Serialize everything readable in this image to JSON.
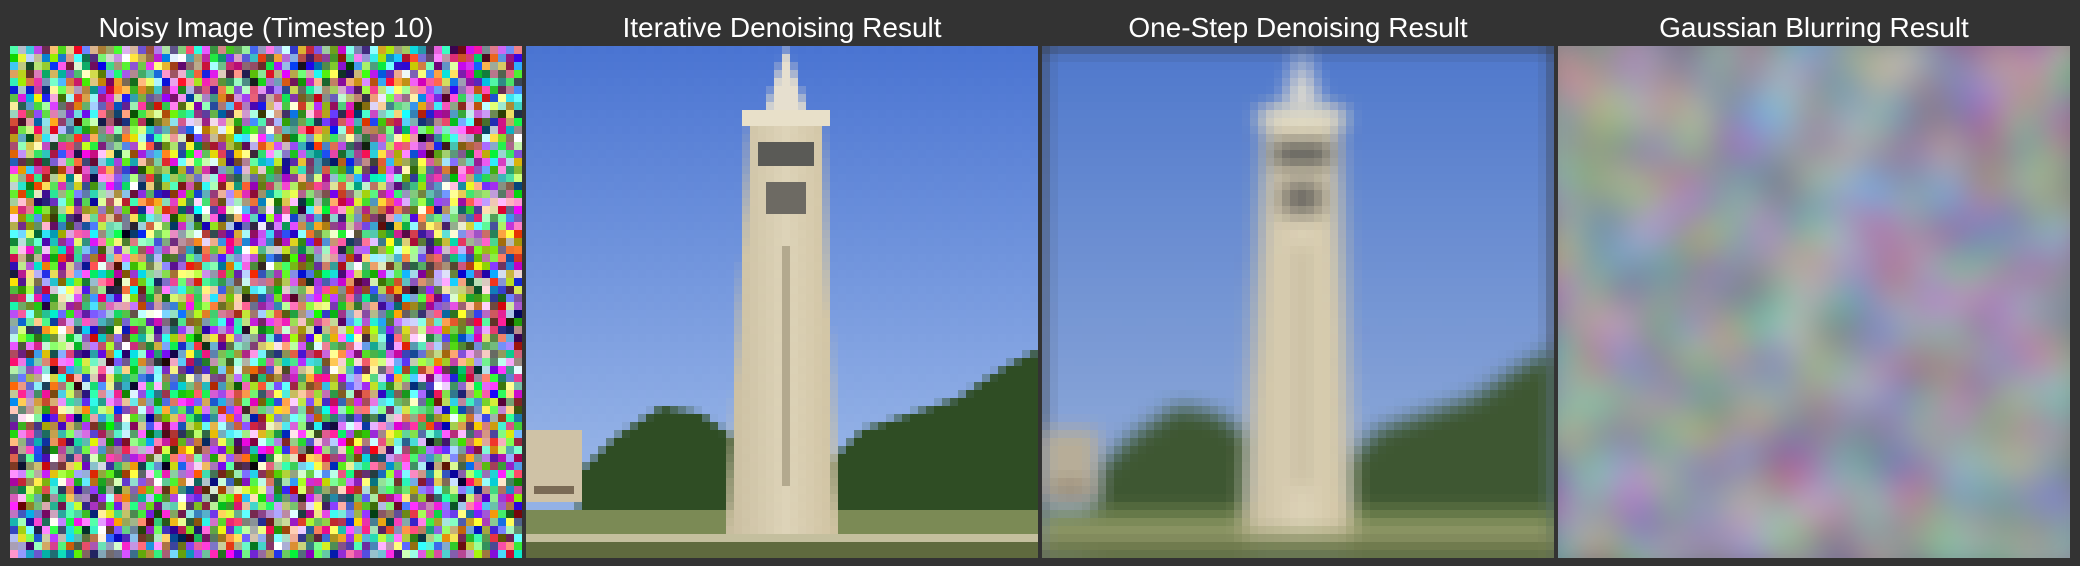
{
  "panels": [
    {
      "title": "Noisy Image (Timestep 10)",
      "image": "noisy-image"
    },
    {
      "title": "Iterative Denoising Result",
      "image": "iterative-denoised-tower-image"
    },
    {
      "title": "One-Step Denoising Result",
      "image": "one-step-denoised-tower-image"
    },
    {
      "title": "Gaussian Blurring Result",
      "image": "gaussian-blurred-noise-image"
    }
  ],
  "colors": {
    "background": "#333333",
    "title_text": "#ffffff",
    "sky": "#5f88d8",
    "tower": "#ddd3b8",
    "trees": "#3a5a2c",
    "grass": "#7b8a55"
  }
}
